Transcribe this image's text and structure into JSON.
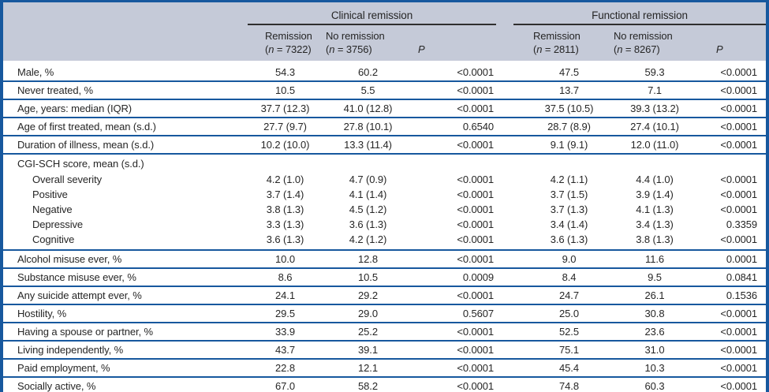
{
  "table": {
    "colors": {
      "header_bg": "#c5cad8",
      "rule_blue": "#17589e",
      "spanner_rule": "#2f2f2f",
      "text": "#262626"
    },
    "groups": [
      {
        "label": "Clinical remission",
        "cols": [
          {
            "title": "Remission",
            "n_open": "(",
            "n_symbol": "n",
            "n_value": " = 7322)"
          },
          {
            "title": "No remission",
            "n_open": "(",
            "n_symbol": "n",
            "n_value": " = 3756)"
          }
        ],
        "p_label": "P"
      },
      {
        "label": "Functional remission",
        "cols": [
          {
            "title": "Remission",
            "n_open": "(",
            "n_symbol": "n",
            "n_value": " = 2811)"
          },
          {
            "title": "No remission",
            "n_open": "(",
            "n_symbol": "n",
            "n_value": " = 8267)"
          }
        ],
        "p_label": "P"
      }
    ],
    "rows": [
      {
        "label": "Male, %",
        "values": [
          "54.3",
          "60.2",
          "<0.0001",
          "47.5",
          "59.3",
          "<0.0001"
        ]
      },
      {
        "label": "Never treated, %",
        "values": [
          "10.5",
          "5.5",
          "<0.0001",
          "13.7",
          "7.1",
          "<0.0001"
        ]
      },
      {
        "label": "Age, years: median (IQR)",
        "values": [
          "37.7 (12.3)",
          "41.0 (12.8)",
          "<0.0001",
          "37.5 (10.5)",
          "39.3 (13.2)",
          "<0.0001"
        ]
      },
      {
        "label": "Age of first treated, mean (s.d.)",
        "values": [
          "27.7 (9.7)",
          "27.8 (10.1)",
          "0.6540",
          "28.7 (8.9)",
          "27.4 (10.1)",
          "<0.0001"
        ]
      },
      {
        "label": "Duration of illness, mean (s.d.)",
        "values": [
          "10.2 (10.0)",
          "13.3 (11.4)",
          "<0.0001",
          "9.1 (9.1)",
          "12.0 (11.0)",
          "<0.0001"
        ]
      },
      {
        "label": "CGI-SCH score, mean (s.d.)",
        "values": null,
        "subrows": [
          {
            "label": "Overall severity",
            "values": [
              "4.2 (1.0)",
              "4.7 (0.9)",
              "<0.0001",
              "4.2 (1.1)",
              "4.4 (1.0)",
              "<0.0001"
            ]
          },
          {
            "label": "Positive",
            "values": [
              "3.7 (1.4)",
              "4.1 (1.4)",
              "<0.0001",
              "3.7 (1.5)",
              "3.9 (1.4)",
              "<0.0001"
            ]
          },
          {
            "label": "Negative",
            "values": [
              "3.8 (1.3)",
              "4.5 (1.2)",
              "<0.0001",
              "3.7 (1.3)",
              "4.1 (1.3)",
              "<0.0001"
            ]
          },
          {
            "label": "Depressive",
            "values": [
              "3.3 (1.3)",
              "3.6 (1.3)",
              "<0.0001",
              "3.4 (1.4)",
              "3.4 (1.3)",
              "0.3359"
            ]
          },
          {
            "label": "Cognitive",
            "values": [
              "3.6 (1.3)",
              "4.2 (1.2)",
              "<0.0001",
              "3.6 (1.3)",
              "3.8 (1.3)",
              "<0.0001"
            ]
          }
        ]
      },
      {
        "label": "Alcohol misuse ever, %",
        "values": [
          "10.0",
          "12.8",
          "<0.0001",
          "9.0",
          "11.6",
          "0.0001"
        ]
      },
      {
        "label": "Substance misuse ever, %",
        "values": [
          "8.6",
          "10.5",
          "0.0009",
          "8.4",
          "9.5",
          "0.0841"
        ]
      },
      {
        "label": "Any suicide attempt ever, %",
        "values": [
          "24.1",
          "29.2",
          "<0.0001",
          "24.7",
          "26.1",
          "0.1536"
        ]
      },
      {
        "label": "Hostility, %",
        "values": [
          "29.5",
          "29.0",
          "0.5607",
          "25.0",
          "30.8",
          "<0.0001"
        ]
      },
      {
        "label": "Having a spouse or partner, %",
        "values": [
          "33.9",
          "25.2",
          "<0.0001",
          "52.5",
          "23.6",
          "<0.0001"
        ]
      },
      {
        "label": "Living independently, %",
        "values": [
          "43.7",
          "39.1",
          "<0.0001",
          "75.1",
          "31.0",
          "<0.0001"
        ]
      },
      {
        "label": "Paid employment, %",
        "values": [
          "22.8",
          "12.1",
          "<0.0001",
          "45.4",
          "10.3",
          "<0.0001"
        ]
      },
      {
        "label": "Socially active, %",
        "values": [
          "67.0",
          "58.2",
          "<0.0001",
          "74.8",
          "60.3",
          "<0.0001"
        ]
      }
    ]
  }
}
